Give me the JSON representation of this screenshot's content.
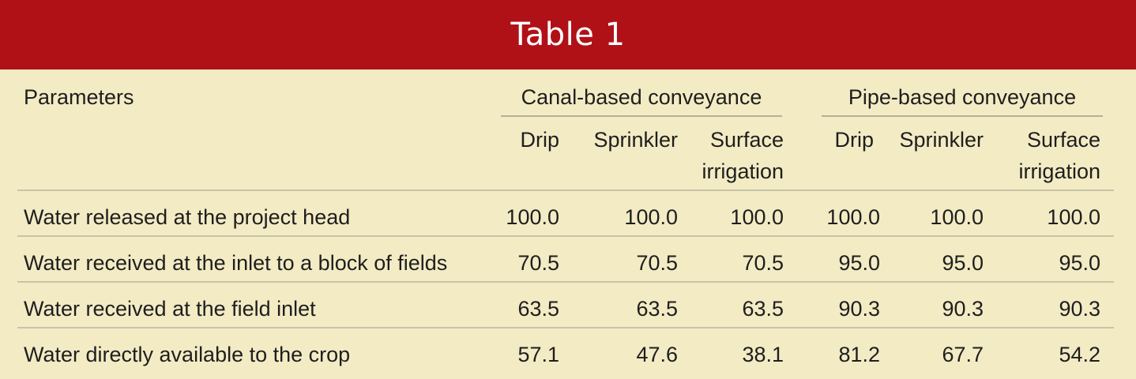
{
  "table": {
    "title": "Table 1",
    "header": {
      "parameters": "Parameters",
      "groups": [
        "Canal-based conveyance",
        "Pipe-based conveyance"
      ],
      "subcolumns": [
        [
          "Drip"
        ],
        [
          "Sprinkler"
        ],
        [
          "Surface",
          "irrigation"
        ],
        [
          "Drip"
        ],
        [
          "Sprinkler"
        ],
        [
          "Surface",
          "irrigation"
        ]
      ]
    },
    "rows": [
      {
        "label": "Water released at the project head",
        "values": [
          "100.0",
          "100.0",
          "100.0",
          "100.0",
          "100.0",
          "100.0"
        ]
      },
      {
        "label": "Water received at the inlet to a block of fields",
        "values": [
          "70.5",
          "70.5",
          "70.5",
          "95.0",
          "95.0",
          "95.0"
        ]
      },
      {
        "label": "Water received at the field inlet",
        "values": [
          "63.5",
          "63.5",
          "63.5",
          "90.3",
          "90.3",
          "90.3"
        ]
      },
      {
        "label": "Water directly available to the crop",
        "values": [
          "57.1",
          "47.6",
          "38.1",
          "81.2",
          "67.7",
          "54.2"
        ]
      }
    ]
  }
}
